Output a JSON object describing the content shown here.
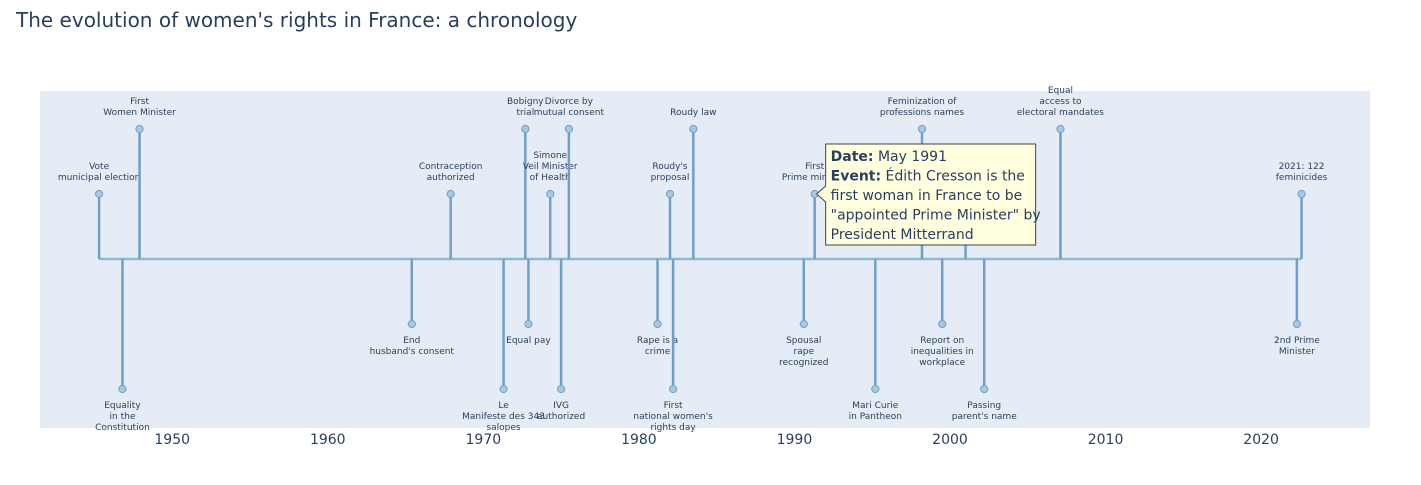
{
  "chart_data": {
    "type": "timeline",
    "title": "The evolution of women's rights in France: a chronology",
    "xlim": [
      1941.5,
      2027
    ],
    "x_ticks": [
      1950,
      1960,
      1970,
      1980,
      1990,
      2000,
      2010,
      2020
    ],
    "colors": {
      "plot_bg": "#e5ecf6",
      "line": "#8fb8d4",
      "marker_fill": "#a6c8e0",
      "marker_stroke": "#6f9fc7",
      "text": "#2a3f5f",
      "tooltip_bg": "#ffffe0",
      "tooltip_border": "#444444"
    },
    "events": [
      {
        "x": 1945.3,
        "level": 1,
        "label": [
          "Vote",
          "municipal election"
        ]
      },
      {
        "x": 1946.8,
        "level": -2,
        "label": [
          "Equality",
          "in the",
          "Constitution"
        ]
      },
      {
        "x": 1947.9,
        "level": 2,
        "label": [
          "First",
          "Women Minister"
        ]
      },
      {
        "x": 1965.4,
        "level": -1,
        "label": [
          "End",
          "husband's consent"
        ]
      },
      {
        "x": 1967.9,
        "level": 1,
        "label": [
          "Contraception",
          "authorized"
        ]
      },
      {
        "x": 1971.3,
        "level": -2,
        "label": [
          "Le",
          "Manifeste des 343",
          "salopes"
        ]
      },
      {
        "x": 1972.7,
        "level": 2,
        "label": [
          "Bobigny",
          "trial"
        ]
      },
      {
        "x": 1972.9,
        "level": -1,
        "label": [
          "Equal pay"
        ]
      },
      {
        "x": 1974.3,
        "level": 1,
        "label": [
          "Simone",
          "Veil Minister",
          "of Health"
        ]
      },
      {
        "x": 1975.0,
        "level": -2,
        "label": [
          "IVG",
          "authorized"
        ]
      },
      {
        "x": 1975.5,
        "level": 2,
        "label": [
          "Divorce by",
          "mutual consent"
        ]
      },
      {
        "x": 1981.2,
        "level": -1,
        "label": [
          "Rape is a",
          "crime"
        ]
      },
      {
        "x": 1982.0,
        "level": 1,
        "label": [
          "Roudy's",
          "proposal"
        ]
      },
      {
        "x": 1982.2,
        "level": -2,
        "label": [
          "First",
          "national women's",
          "rights day"
        ]
      },
      {
        "x": 1983.5,
        "level": 2,
        "label": [
          "Roudy law"
        ]
      },
      {
        "x": 1990.6,
        "level": -1,
        "label": [
          "Spousal",
          "rape",
          "recognized"
        ]
      },
      {
        "x": 1991.3,
        "level": 1,
        "label": [
          "First",
          "Prime minister"
        ]
      },
      {
        "x": 1995.2,
        "level": -2,
        "label": [
          "Mari Curie",
          "in Pantheon"
        ]
      },
      {
        "x": 1998.2,
        "level": 2,
        "label": [
          "Feminization of",
          "professions names"
        ]
      },
      {
        "x": 1999.5,
        "level": -1,
        "label": [
          "Report on",
          "inequalities in",
          "workplace"
        ]
      },
      {
        "x": 2001.0,
        "level": 0.5,
        "label": []
      },
      {
        "x": 2002.2,
        "level": -2,
        "label": [
          "Passing",
          "parent's name"
        ]
      },
      {
        "x": 2007.1,
        "level": 2,
        "label": [
          "Equal",
          "access to",
          "electoral mandates"
        ]
      },
      {
        "x": 2022.3,
        "level": -1,
        "label": [
          "2nd Prime",
          "Minister"
        ]
      },
      {
        "x": 2022.6,
        "level": 1,
        "label": [
          "2021: 122",
          "feminicides"
        ]
      }
    ],
    "tooltip": {
      "event_index": 16,
      "date_label": "Date:",
      "date_value": "May 1991",
      "event_label": "Event:",
      "event_lines": [
        "Édith Cresson is the",
        "first woman in France to be",
        "\"appointed Prime Minister\" by",
        "President Mitterrand"
      ]
    }
  }
}
